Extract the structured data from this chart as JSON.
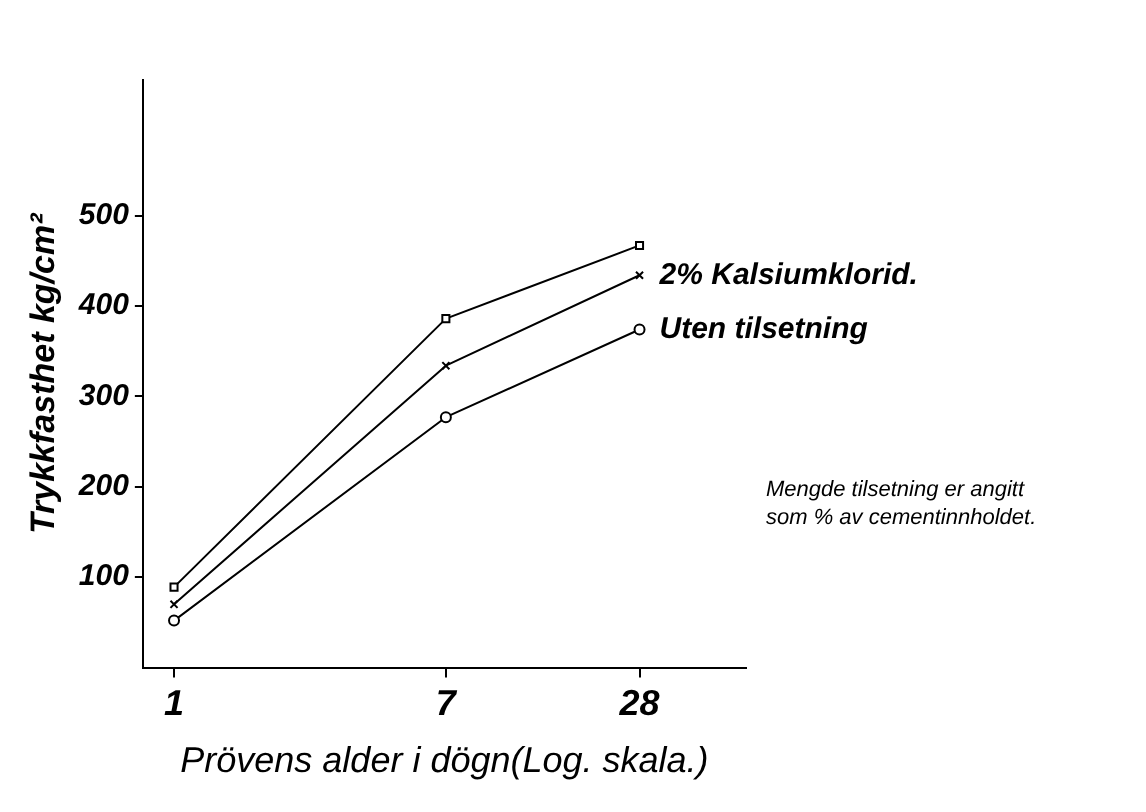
{
  "chart_data": {
    "type": "line",
    "xlabel": "Prövens alder i dögn(Log. skala.)",
    "ylabel": "Trykkfasthet kg/cm²",
    "x": [
      1,
      7,
      28
    ],
    "xlim": [
      0.8,
      60
    ],
    "xticks": [
      1,
      7,
      28
    ],
    "log": "x",
    "ylim": [
      0,
      650
    ],
    "yticks": [
      100,
      200,
      300,
      400,
      500
    ],
    "series": [
      {
        "color": "#000000",
        "marker": "square",
        "values": [
          89,
          386,
          467
        ]
      },
      {
        "name": "2% Kalsiumklorid.",
        "color": "#000000",
        "marker": "cross",
        "values": [
          70,
          334,
          434
        ]
      },
      {
        "name": "Uten tilsetning",
        "color": "#000000",
        "marker": "circle",
        "values": [
          52,
          277,
          374
        ]
      }
    ],
    "annotations": [
      "Mengde tilsetning er angitt som % av cementinnholdet."
    ],
    "grid": false,
    "legend": false
  }
}
